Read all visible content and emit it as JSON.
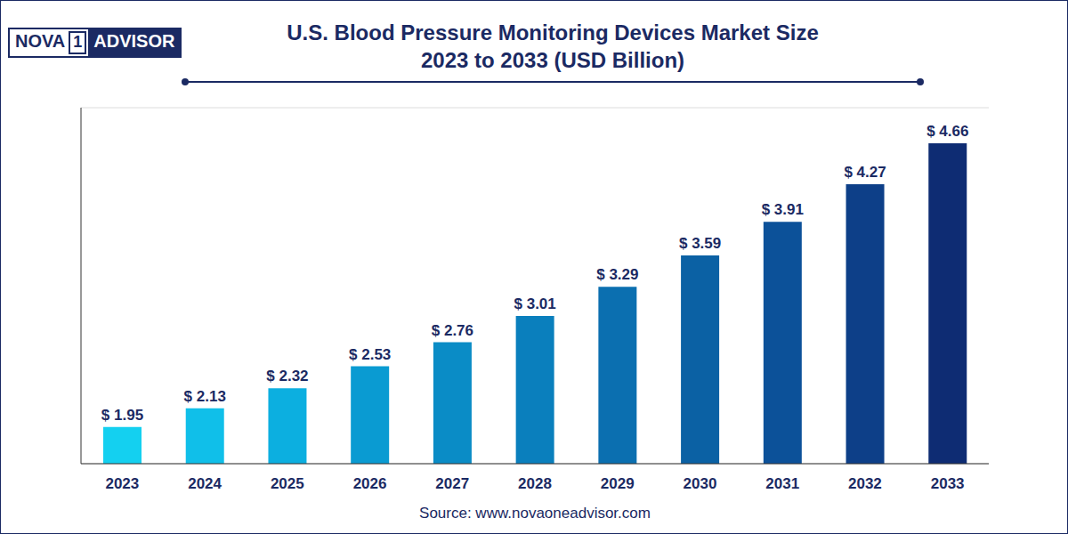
{
  "chart_data": {
    "type": "bar",
    "logo": [
      "NOVA",
      "1",
      "ADVISOR"
    ],
    "title": "U.S. Blood Pressure Monitoring Devices Market Size",
    "subtitle": "2023 to 2033 (USD Billion)",
    "source": "Source: www.novaoneadvisor.com",
    "categories": [
      "2023",
      "2024",
      "2025",
      "2026",
      "2027",
      "2028",
      "2029",
      "2030",
      "2031",
      "2032",
      "2033"
    ],
    "values": [
      1.95,
      2.13,
      2.32,
      2.53,
      2.76,
      3.01,
      3.29,
      3.59,
      3.91,
      4.27,
      4.66
    ],
    "value_labels": [
      "$ 1.95",
      "$ 2.13",
      "$ 2.32",
      "$ 2.53",
      "$ 2.76",
      "$ 3.01",
      "$ 3.29",
      "$ 3.59",
      "$ 3.91",
      "$ 4.27",
      "$ 4.66"
    ],
    "colors": [
      "#14d0f0",
      "#10bfe9",
      "#0cafe0",
      "#0a9bd2",
      "#0a8cc6",
      "#0a7fbd",
      "#0b6fb0",
      "#0b61a4",
      "#0c5199",
      "#0d3f88",
      "#0e2c73"
    ],
    "ylim": [
      1.6,
      5.0
    ],
    "yticks": [
      1.6,
      1.94,
      2.28,
      2.62,
      2.96,
      3.3,
      3.64,
      3.98,
      4.32,
      4.66,
      5.0
    ],
    "grid": true,
    "data_labels": true,
    "tick_labels": "x"
  }
}
